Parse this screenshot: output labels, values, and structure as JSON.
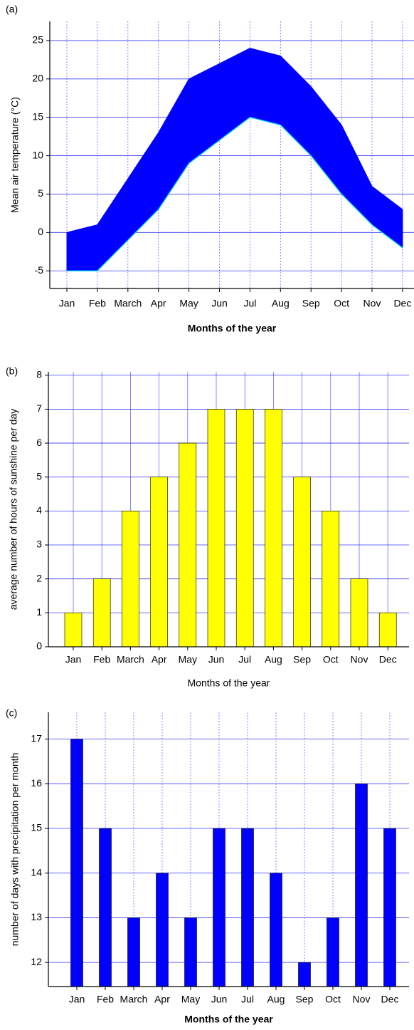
{
  "chart_data": [
    {
      "type": "area",
      "panel": "(a)",
      "ylabel": "Mean air temperature (°C)",
      "xlabel": "Months of the year",
      "categories": [
        "Jan",
        "Feb",
        "March",
        "Apr",
        "May",
        "Jun",
        "Jul",
        "Aug",
        "Sep",
        "Oct",
        "Nov",
        "Dec"
      ],
      "series": [
        {
          "color": "#0000ff",
          "values": [
            0,
            1,
            7,
            13,
            20,
            22,
            24,
            23,
            19,
            14,
            6,
            3
          ]
        },
        {
          "color": "#0000ff",
          "values": [
            -5,
            -5,
            -1,
            3,
            9,
            12,
            15,
            14,
            10,
            5,
            1,
            -2
          ]
        }
      ],
      "ylim": [
        -7.3,
        27.5
      ],
      "yticks": [
        -5,
        0,
        5,
        10,
        15,
        20,
        25
      ],
      "grid": true
    },
    {
      "type": "bar",
      "panel": "(b)",
      "ylabel": "average number of hours of sunshine per day",
      "xlabel": "Months of the year",
      "categories": [
        "Jan",
        "Feb",
        "March",
        "Apr",
        "May",
        "Jun",
        "Jul",
        "Aug",
        "Sep",
        "Oct",
        "Nov",
        "Dec"
      ],
      "values": [
        1,
        2,
        4,
        5,
        6,
        7,
        7,
        7,
        5,
        4,
        2,
        1
      ],
      "color": "#ffff00",
      "ylim": [
        0,
        8.1
      ],
      "yticks": [
        0,
        1,
        2,
        3,
        4,
        5,
        6,
        7,
        8
      ],
      "grid": true
    },
    {
      "type": "bar",
      "panel": "(c)",
      "ylabel": "number of days with precipitation per month",
      "xlabel": "Months of the year",
      "categories": [
        "Jan",
        "Feb",
        "March",
        "Apr",
        "May",
        "Jun",
        "Jul",
        "Aug",
        "Sep",
        "Oct",
        "Nov",
        "Dec"
      ],
      "values": [
        17,
        15,
        13,
        14,
        13,
        15,
        15,
        14,
        12,
        13,
        16,
        15
      ],
      "color": "#0000ff",
      "ylim": [
        11.46,
        17.6
      ],
      "yticks": [
        12,
        13,
        14,
        15,
        16,
        17
      ],
      "grid": true
    }
  ]
}
